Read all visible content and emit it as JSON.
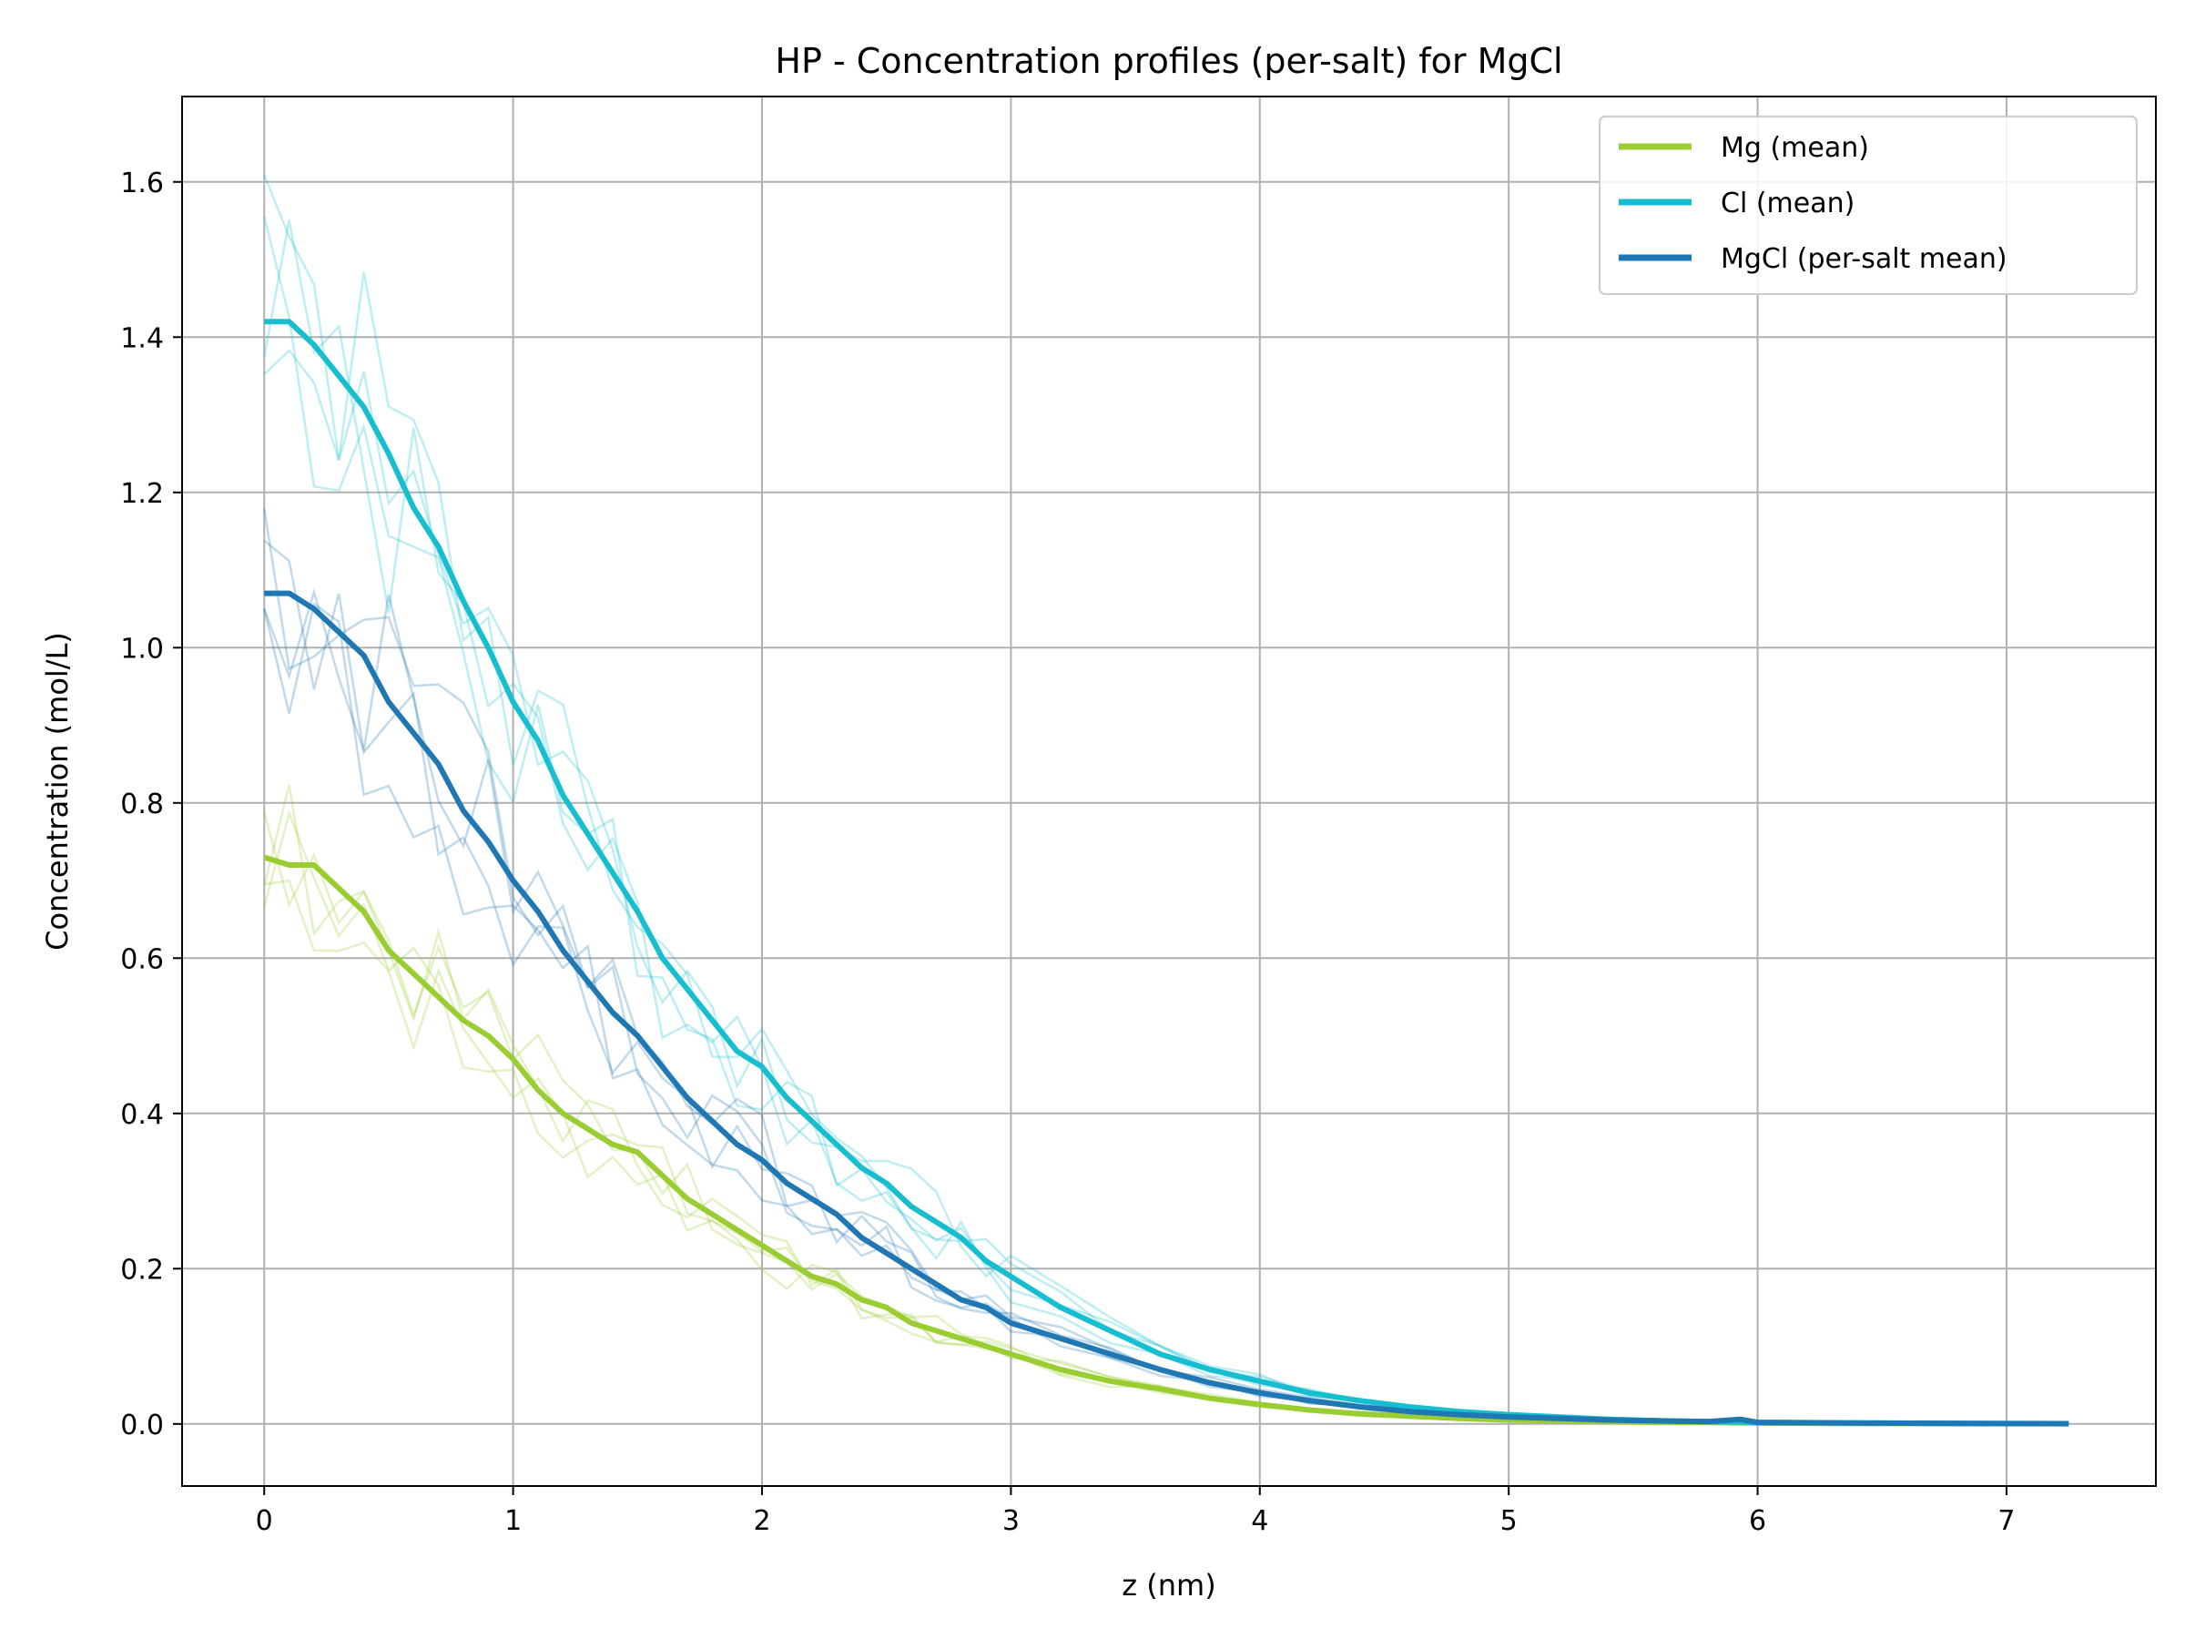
{
  "chart_data": {
    "type": "line",
    "title": "HP - Concentration profiles (per-salt) for MgCl",
    "xlabel": "z (nm)",
    "ylabel": "Concentration (mol/L)",
    "xlim": [
      -0.33,
      7.6
    ],
    "ylim": [
      -0.08,
      1.71
    ],
    "xticks": [
      0,
      1,
      2,
      3,
      4,
      5,
      6,
      7
    ],
    "yticks": [
      0.0,
      0.2,
      0.4,
      0.6,
      0.8,
      1.0,
      1.2,
      1.4,
      1.6
    ],
    "grid": true,
    "legend_position": "top-right",
    "series": [
      {
        "name": "Mg (mean)",
        "color": "#9acd32",
        "x": [
          0.0,
          0.1,
          0.2,
          0.3,
          0.4,
          0.5,
          0.6,
          0.7,
          0.8,
          0.9,
          1.0,
          1.1,
          1.2,
          1.3,
          1.4,
          1.5,
          1.6,
          1.7,
          1.8,
          1.9,
          2.0,
          2.1,
          2.2,
          2.3,
          2.4,
          2.5,
          2.6,
          2.7,
          2.8,
          2.9,
          3.0,
          3.2,
          3.4,
          3.6,
          3.8,
          4.0,
          4.2,
          4.4,
          4.6,
          4.8,
          5.0,
          5.2,
          5.4,
          5.6,
          5.8,
          6.0,
          6.5,
          7.0,
          7.25
        ],
        "y": [
          0.73,
          0.72,
          0.72,
          0.69,
          0.66,
          0.61,
          0.58,
          0.55,
          0.52,
          0.5,
          0.47,
          0.43,
          0.4,
          0.38,
          0.36,
          0.35,
          0.32,
          0.29,
          0.27,
          0.25,
          0.23,
          0.21,
          0.19,
          0.18,
          0.16,
          0.15,
          0.13,
          0.12,
          0.11,
          0.1,
          0.09,
          0.07,
          0.055,
          0.045,
          0.033,
          0.025,
          0.018,
          0.013,
          0.01,
          0.007,
          0.005,
          0.004,
          0.003,
          0.002,
          0.002,
          0.001,
          0.0005,
          0.0003,
          0.0002
        ]
      },
      {
        "name": "Cl (mean)",
        "color": "#17becf",
        "x": [
          0.0,
          0.1,
          0.2,
          0.3,
          0.4,
          0.5,
          0.6,
          0.7,
          0.8,
          0.9,
          1.0,
          1.1,
          1.2,
          1.3,
          1.4,
          1.5,
          1.6,
          1.7,
          1.8,
          1.9,
          2.0,
          2.1,
          2.2,
          2.3,
          2.4,
          2.5,
          2.6,
          2.7,
          2.8,
          2.9,
          3.0,
          3.2,
          3.4,
          3.6,
          3.8,
          4.0,
          4.2,
          4.4,
          4.6,
          4.8,
          5.0,
          5.2,
          5.4,
          5.6,
          5.8,
          6.0,
          6.5,
          7.0,
          7.25
        ],
        "y": [
          1.42,
          1.42,
          1.39,
          1.35,
          1.31,
          1.25,
          1.18,
          1.13,
          1.06,
          1.0,
          0.93,
          0.88,
          0.81,
          0.76,
          0.71,
          0.66,
          0.6,
          0.56,
          0.52,
          0.48,
          0.46,
          0.42,
          0.39,
          0.36,
          0.33,
          0.31,
          0.28,
          0.26,
          0.24,
          0.21,
          0.19,
          0.15,
          0.12,
          0.09,
          0.07,
          0.055,
          0.04,
          0.03,
          0.022,
          0.016,
          0.012,
          0.009,
          0.006,
          0.004,
          0.003,
          0.002,
          0.001,
          0.0005,
          0.0003
        ]
      },
      {
        "name": "MgCl (per-salt mean)",
        "color": "#1f77b4",
        "x": [
          0.0,
          0.1,
          0.2,
          0.3,
          0.4,
          0.5,
          0.6,
          0.7,
          0.8,
          0.9,
          1.0,
          1.1,
          1.2,
          1.3,
          1.4,
          1.5,
          1.6,
          1.7,
          1.8,
          1.9,
          2.0,
          2.1,
          2.2,
          2.3,
          2.4,
          2.5,
          2.6,
          2.7,
          2.8,
          2.9,
          3.0,
          3.2,
          3.4,
          3.6,
          3.8,
          4.0,
          4.2,
          4.4,
          4.6,
          4.8,
          5.0,
          5.2,
          5.4,
          5.6,
          5.8,
          5.93,
          6.0,
          6.5,
          7.0,
          7.25
        ],
        "y": [
          1.07,
          1.07,
          1.05,
          1.02,
          0.99,
          0.93,
          0.89,
          0.85,
          0.79,
          0.75,
          0.7,
          0.66,
          0.61,
          0.57,
          0.53,
          0.5,
          0.46,
          0.42,
          0.39,
          0.36,
          0.34,
          0.31,
          0.29,
          0.27,
          0.24,
          0.22,
          0.2,
          0.18,
          0.16,
          0.15,
          0.13,
          0.11,
          0.09,
          0.07,
          0.053,
          0.04,
          0.03,
          0.022,
          0.016,
          0.012,
          0.009,
          0.007,
          0.005,
          0.004,
          0.003,
          0.006,
          0.002,
          0.001,
          0.0005,
          0.0003
        ]
      }
    ]
  }
}
